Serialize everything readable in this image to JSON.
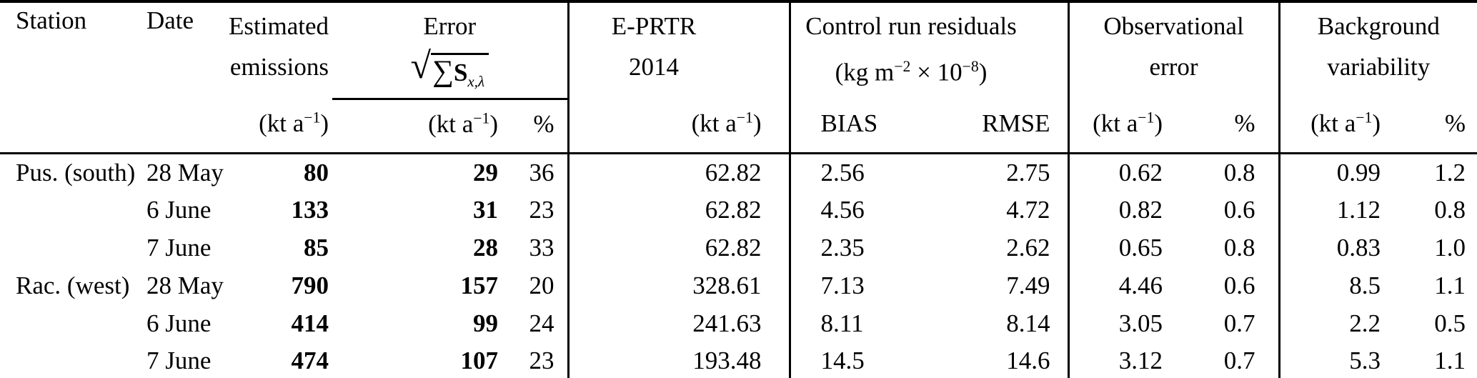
{
  "page": {
    "background_color": "#ffffff",
    "text_color": "#000000",
    "rule_color": "#000000"
  },
  "table": {
    "header": {
      "station": "Station",
      "date": "Date",
      "estimated": {
        "line1": "Estimated",
        "line2": "emissions"
      },
      "error": {
        "title": "Error",
        "sqrt_symbol": "√",
        "sum_symbol": "∑",
        "matrix_symbol": "S",
        "subscript": "x,λ"
      },
      "eprtr": {
        "line1": "E-PRTR",
        "line2": "2014"
      },
      "control": {
        "title": "Control run residuals",
        "unit_pre": "(kg m",
        "unit_sup1": "−2",
        "unit_mid": " × 10",
        "unit_sup2": "−8",
        "unit_post": ")"
      },
      "observational": {
        "line1": "Observational",
        "line2": "error"
      },
      "background": {
        "line1": "Background",
        "line2": "variability"
      },
      "units": {
        "kt_pre": "(kt a",
        "kt_sup": "−1",
        "kt_post": ")",
        "percent": "%",
        "bias": "BIAS",
        "rmse": "RMSE"
      }
    },
    "rows": [
      {
        "station": "Pus. (south)",
        "date": "28 May",
        "estimated": "80",
        "error_kt": "29",
        "error_pct": "36",
        "eprtr": "62.82",
        "bias": "2.56",
        "rmse": "2.75",
        "obs_kt": "0.62",
        "obs_pct": "0.8",
        "bg_kt": "0.99",
        "bg_pct": "1.2"
      },
      {
        "station": "",
        "date": "6 June",
        "estimated": "133",
        "error_kt": "31",
        "error_pct": "23",
        "eprtr": "62.82",
        "bias": "4.56",
        "rmse": "4.72",
        "obs_kt": "0.82",
        "obs_pct": "0.6",
        "bg_kt": "1.12",
        "bg_pct": "0.8"
      },
      {
        "station": "",
        "date": "7 June",
        "estimated": "85",
        "error_kt": "28",
        "error_pct": "33",
        "eprtr": "62.82",
        "bias": "2.35",
        "rmse": "2.62",
        "obs_kt": "0.65",
        "obs_pct": "0.8",
        "bg_kt": "0.83",
        "bg_pct": "1.0"
      },
      {
        "station": "Rac. (west)",
        "date": "28 May",
        "estimated": "790",
        "error_kt": "157",
        "error_pct": "20",
        "eprtr": "328.61",
        "bias": "7.13",
        "rmse": "7.49",
        "obs_kt": "4.46",
        "obs_pct": "0.6",
        "bg_kt": "8.5",
        "bg_pct": "1.1"
      },
      {
        "station": "",
        "date": "6 June",
        "estimated": "414",
        "error_kt": "99",
        "error_pct": "24",
        "eprtr": "241.63",
        "bias": "8.11",
        "rmse": "8.14",
        "obs_kt": "3.05",
        "obs_pct": "0.7",
        "bg_kt": "2.2",
        "bg_pct": "0.5"
      },
      {
        "station": "",
        "date": "7 June",
        "estimated": "474",
        "error_kt": "107",
        "error_pct": "23",
        "eprtr": "193.48",
        "bias": "14.5",
        "rmse": "14.6",
        "obs_kt": "3.12",
        "obs_pct": "0.7",
        "bg_kt": "5.3",
        "bg_pct": "1.1"
      }
    ]
  }
}
